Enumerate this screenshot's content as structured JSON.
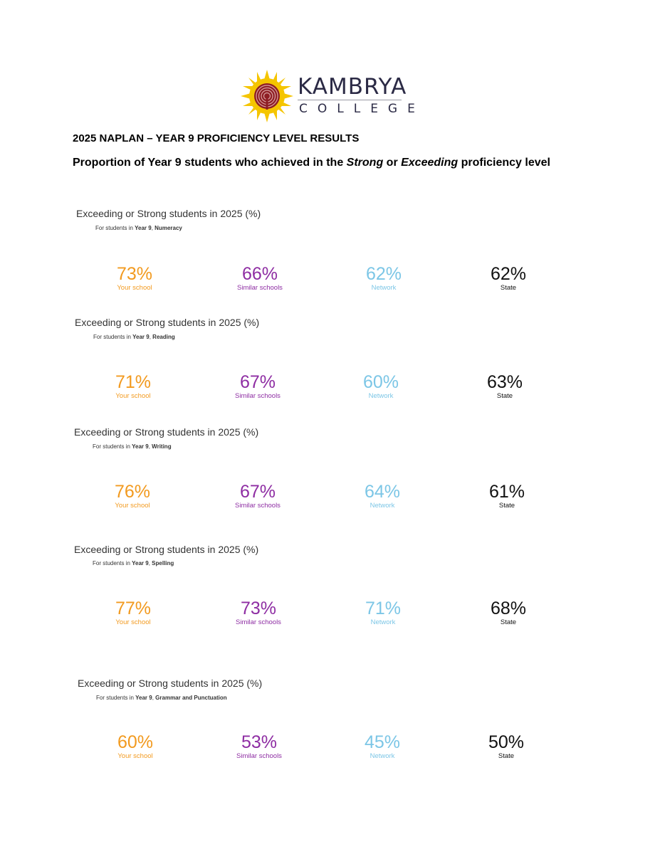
{
  "logo": {
    "wordmark": "KAMBRYA",
    "subtext": "COLLEGE",
    "colors": {
      "sun": "#f5c500",
      "maze": "#8e1e24",
      "text": "#2b2a45"
    }
  },
  "heading": "2025 NAPLAN – YEAR 9 PROFICIENCY LEVEL RESULTS",
  "subheading": {
    "prefix": "Proportion of Year 9 students who achieved in the ",
    "strong": "Strong",
    "or": " or ",
    "exceeding": "Exceeding",
    "suffix": " proficiency level"
  },
  "colors": {
    "your_school": "#f29a1f",
    "similar_schools": "#8e2da3",
    "network": "#7cc6e6",
    "state": "#111111"
  },
  "sections": [
    {
      "title": "Exceeding or Strong students in 2025 (%)",
      "sub_prefix": "For students in ",
      "year": "Year 9",
      "domain": "Numeracy",
      "metrics": [
        {
          "value": "73%",
          "label": "Your school"
        },
        {
          "value": "66%",
          "label": "Similar schools"
        },
        {
          "value": "62%",
          "label": "Network"
        },
        {
          "value": "62%",
          "label": "State"
        }
      ]
    },
    {
      "title": "Exceeding or Strong students in 2025 (%)",
      "sub_prefix": "For students in ",
      "year": "Year 9",
      "domain": "Reading",
      "metrics": [
        {
          "value": "71%",
          "label": "Your school"
        },
        {
          "value": "67%",
          "label": "Similar schools"
        },
        {
          "value": "60%",
          "label": "Network"
        },
        {
          "value": "63%",
          "label": "State"
        }
      ]
    },
    {
      "title": "Exceeding or Strong students in 2025 (%)",
      "sub_prefix": "For students in ",
      "year": "Year 9",
      "domain": "Writing",
      "metrics": [
        {
          "value": "76%",
          "label": "Your school"
        },
        {
          "value": "67%",
          "label": "Similar schools"
        },
        {
          "value": "64%",
          "label": "Network"
        },
        {
          "value": "61%",
          "label": "State"
        }
      ]
    },
    {
      "title": "Exceeding or Strong students in 2025 (%)",
      "sub_prefix": "For students in ",
      "year": "Year 9",
      "domain": "Spelling",
      "metrics": [
        {
          "value": "77%",
          "label": "Your school"
        },
        {
          "value": "73%",
          "label": "Similar schools"
        },
        {
          "value": "71%",
          "label": "Network"
        },
        {
          "value": "68%",
          "label": "State"
        }
      ]
    },
    {
      "title": "Exceeding or Strong students in 2025 (%)",
      "sub_prefix": "For students in ",
      "year": "Year 9",
      "domain": "Grammar and Punctuation",
      "metrics": [
        {
          "value": "60%",
          "label": "Your school"
        },
        {
          "value": "53%",
          "label": "Similar schools"
        },
        {
          "value": "45%",
          "label": "Network"
        },
        {
          "value": "50%",
          "label": "State"
        }
      ]
    }
  ]
}
